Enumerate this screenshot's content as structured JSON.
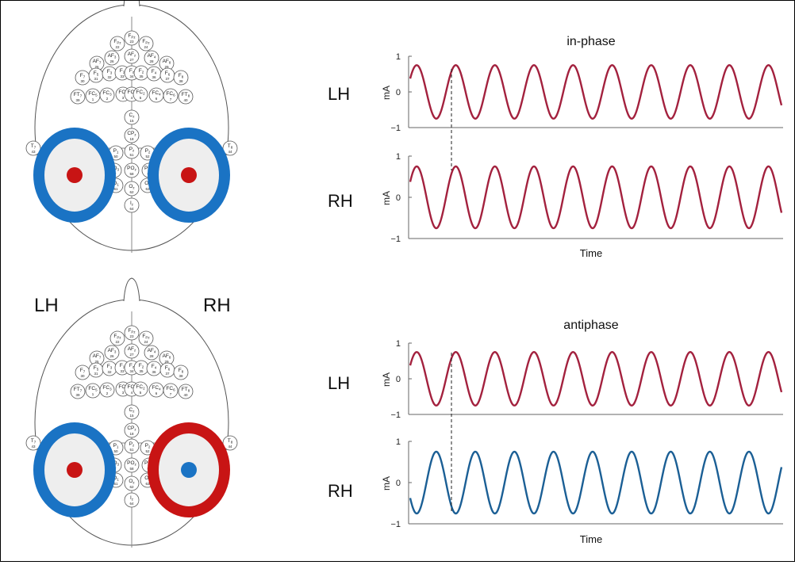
{
  "colors": {
    "red_wave": "#a3213e",
    "blue_wave": "#1b5f95",
    "ring_blue": "#1a73c4",
    "ring_red": "#c81414",
    "dot_red": "#c81414",
    "dot_blue": "#1a73c4",
    "pad_fill": "#eeeeee",
    "electrode_stroke": "#555555"
  },
  "hemisphere_labels": {
    "left": "LH",
    "right": "RH"
  },
  "electrodes": [
    {
      "b": "F",
      "s": "Pz",
      "n": "23"
    },
    {
      "b": "F",
      "s": "Pz",
      "n": "24"
    },
    {
      "b": "F",
      "s": "Pz",
      "n": "22"
    },
    {
      "b": "AF",
      "s": "3",
      "n": "26"
    },
    {
      "b": "AF",
      "s": "z",
      "n": "27"
    },
    {
      "b": "AF",
      "s": "4",
      "n": "28"
    },
    {
      "b": "AF",
      "s": "7",
      "n": "25"
    },
    {
      "b": "AF",
      "s": "8",
      "n": "29"
    },
    {
      "b": "F",
      "s": "7",
      "n": "30"
    },
    {
      "b": "F",
      "s": "5",
      "n": "31"
    },
    {
      "b": "F",
      "s": "3",
      "n": "32"
    },
    {
      "b": "F",
      "s": "1",
      "n": "33"
    },
    {
      "b": "F",
      "s": "z",
      "n": "34"
    },
    {
      "b": "F",
      "s": "2",
      "n": "35"
    },
    {
      "b": "F",
      "s": "4",
      "n": "36"
    },
    {
      "b": "F",
      "s": "6",
      "n": "37"
    },
    {
      "b": "F",
      "s": "8",
      "n": "38"
    },
    {
      "b": "FT",
      "s": "7",
      "n": "39"
    },
    {
      "b": "FC",
      "s": "5",
      "n": "1"
    },
    {
      "b": "FC",
      "s": "3",
      "n": "2"
    },
    {
      "b": "FC",
      "s": "1",
      "n": "3"
    },
    {
      "b": "FC",
      "s": "z",
      "n": "4"
    },
    {
      "b": "FC",
      "s": "2",
      "n": "5"
    },
    {
      "b": "FC",
      "s": "4",
      "n": "6"
    },
    {
      "b": "FC",
      "s": "6",
      "n": "7"
    },
    {
      "b": "FT",
      "s": "8",
      "n": "40"
    },
    {
      "b": "T",
      "s": "7",
      "n": "43"
    },
    {
      "b": "C",
      "s": "z",
      "n": "15"
    },
    {
      "b": "T",
      "s": "8",
      "n": "44"
    },
    {
      "b": "CP",
      "s": "z",
      "n": "18"
    },
    {
      "b": "P",
      "s": "z",
      "n": "51"
    },
    {
      "b": "P",
      "s": "2",
      "n": "52"
    },
    {
      "b": "P",
      "s": "1",
      "n": "50"
    },
    {
      "b": "PO",
      "s": "z",
      "n": "58"
    },
    {
      "b": "PO",
      "s": "4",
      "n": "59"
    },
    {
      "b": "PO",
      "s": "3",
      "n": "57"
    },
    {
      "b": "O",
      "s": "1",
      "n": "61"
    },
    {
      "b": "O",
      "s": "z",
      "n": "62"
    },
    {
      "b": "O",
      "s": "2",
      "n": "63"
    },
    {
      "b": "I",
      "s": "z",
      "n": "64"
    }
  ],
  "panels": [
    {
      "id": "in-phase",
      "title": "in-phase",
      "montage": {
        "left": {
          "ring": "ring_blue",
          "dot": "dot_red"
        },
        "right": {
          "ring": "ring_blue",
          "dot": "dot_red"
        }
      },
      "traces": [
        {
          "label": "LH",
          "ylabel": "mA",
          "color": "red_wave",
          "phase": 0,
          "yticks": [
            "1",
            "0",
            "−1"
          ]
        },
        {
          "label": "RH",
          "ylabel": "mA",
          "color": "red_wave",
          "phase": 0,
          "yticks": [
            "1",
            "0",
            "−1"
          ]
        }
      ],
      "xlabel": "Time"
    },
    {
      "id": "antiphase",
      "title": "antiphase",
      "montage": {
        "left": {
          "ring": "ring_blue",
          "dot": "dot_red"
        },
        "right": {
          "ring": "ring_red",
          "dot": "dot_blue"
        }
      },
      "traces": [
        {
          "label": "LH",
          "ylabel": "mA",
          "color": "red_wave",
          "phase": 0,
          "yticks": [
            "1",
            "0",
            "−1"
          ]
        },
        {
          "label": "RH",
          "ylabel": "mA",
          "color": "blue_wave",
          "phase": 180,
          "yticks": [
            "1",
            "0",
            "−1"
          ]
        }
      ],
      "xlabel": "Time"
    }
  ],
  "chart_data": [
    {
      "type": "line",
      "title": "in-phase",
      "xlabel": "Time",
      "cycles_shown": 9.5,
      "series": [
        {
          "name": "LH",
          "ylabel": "mA",
          "amplitude": 0.75,
          "phase_deg": 0,
          "ylim": [
            -1,
            1
          ],
          "yticks": [
            1,
            0,
            -1
          ]
        },
        {
          "name": "RH",
          "ylabel": "mA",
          "amplitude": 0.75,
          "phase_deg": 0,
          "ylim": [
            -1,
            1
          ],
          "yticks": [
            1,
            0,
            -1
          ]
        }
      ]
    },
    {
      "type": "line",
      "title": "antiphase",
      "xlabel": "Time",
      "cycles_shown": 9.5,
      "series": [
        {
          "name": "LH",
          "ylabel": "mA",
          "amplitude": 0.75,
          "phase_deg": 0,
          "ylim": [
            -1,
            1
          ],
          "yticks": [
            1,
            0,
            -1
          ]
        },
        {
          "name": "RH",
          "ylabel": "mA",
          "amplitude": 0.75,
          "phase_deg": 180,
          "ylim": [
            -1,
            1
          ],
          "yticks": [
            1,
            0,
            -1
          ]
        }
      ]
    }
  ]
}
